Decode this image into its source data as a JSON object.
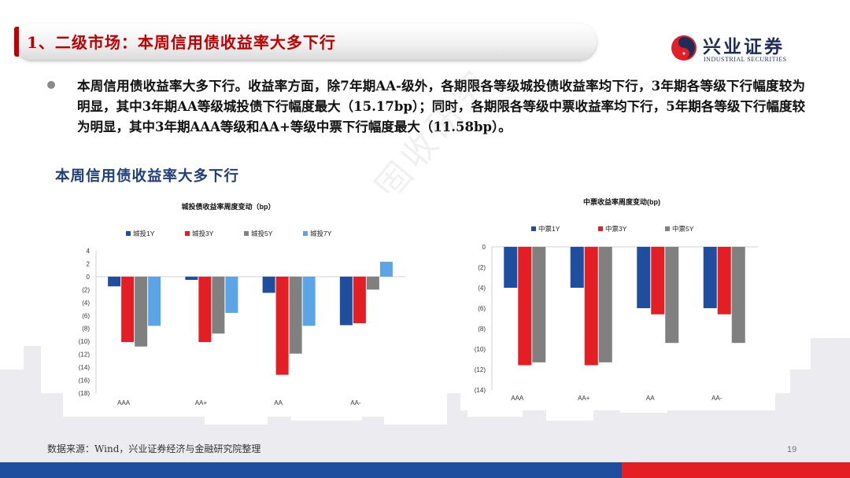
{
  "header": {
    "title": "1、二级市场：本周信用债收益率大多下行"
  },
  "logo": {
    "name_cn": "兴业证券",
    "name_en": "INDUSTRIAL SECURITIES",
    "colors": {
      "red": "#e31e24",
      "navy": "#1f2d5a"
    }
  },
  "summary": "本周信用债收益率大多下行。收益率方面，除7年期AA-级外，各期限各等级城投债收益率均下行，3年期各等级下行幅度较为明显，其中3年期AA等级城投债下行幅度最大（15.17bp）；同时，各期限各等级中票收益率均下行，5年期各等级下行幅度较为明显，其中3年期AAA等级和AA+等级中票下行幅度最大（11.58bp）。",
  "section_title": "本周信用债收益率大多下行",
  "watermark": "兴业固收研究",
  "chart_data": [
    {
      "type": "bar",
      "title": "城投债收益率周度变动（bp）",
      "categories": [
        "AAA",
        "AA+",
        "AA",
        "AA-"
      ],
      "series": [
        {
          "name": "城投1Y",
          "color": "#1f4e9e",
          "values": [
            -1.5,
            -0.5,
            -2.5,
            -7.5
          ]
        },
        {
          "name": "城投3Y",
          "color": "#e31e24",
          "values": [
            -10.1,
            -10.1,
            -15.17,
            -7.2
          ]
        },
        {
          "name": "城投5Y",
          "color": "#808080",
          "values": [
            -10.8,
            -8.8,
            -11.9,
            -2.0
          ]
        },
        {
          "name": "城投7Y",
          "color": "#5ba4e6",
          "values": [
            -7.6,
            -5.6,
            -7.6,
            2.3
          ]
        }
      ],
      "ylim": [
        -18,
        4
      ],
      "yticks": [
        4,
        2,
        0,
        -2,
        -4,
        -6,
        -8,
        -10,
        -12,
        -14,
        -16,
        -18
      ],
      "ytick_labels": [
        "4",
        "2",
        "0",
        "(2)",
        "(4)",
        "(6)",
        "(8)",
        "(10)",
        "(12)",
        "(14)",
        "(16)",
        "(18)"
      ],
      "legend": "top"
    },
    {
      "type": "bar",
      "title": "中票收益率周度变动(bp)",
      "categories": [
        "AAA",
        "AA+",
        "AA",
        "AA-"
      ],
      "series": [
        {
          "name": "中票1Y",
          "color": "#1f4e9e",
          "values": [
            -4.0,
            -4.0,
            -6.0,
            -6.0
          ]
        },
        {
          "name": "中票3Y",
          "color": "#e31e24",
          "values": [
            -11.58,
            -11.58,
            -6.6,
            -6.6
          ]
        },
        {
          "name": "中票5Y",
          "color": "#808080",
          "values": [
            -11.3,
            -11.3,
            -9.4,
            -9.4
          ]
        }
      ],
      "ylim": [
        -14,
        0
      ],
      "yticks": [
        0,
        -2,
        -4,
        -6,
        -8,
        -10,
        -12,
        -14
      ],
      "ytick_labels": [
        "0",
        "(2)",
        "(4)",
        "(6)",
        "(8)",
        "(10)",
        "(12)",
        "(14)"
      ],
      "legend": "top"
    }
  ],
  "footer": {
    "source": "数据来源：Wind，兴业证券经济与金融研究院整理",
    "page_number": "19"
  }
}
